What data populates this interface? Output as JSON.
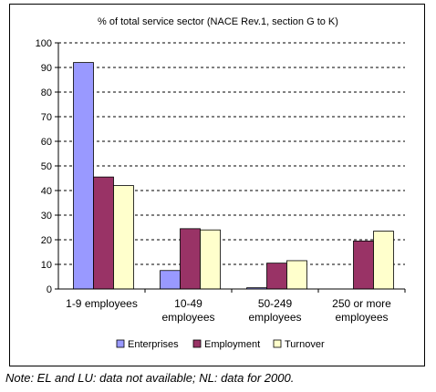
{
  "chart_data": {
    "type": "bar",
    "title": "% of total service sector (NACE Rev.1, section G to K)",
    "categories": [
      [
        "1-9 employees"
      ],
      [
        "10-49",
        "employees"
      ],
      [
        "50-249",
        "employees"
      ],
      [
        "250 or more",
        "employees"
      ]
    ],
    "series": [
      {
        "name": "Enterprises",
        "values": [
          92,
          7.5,
          0.5,
          0
        ],
        "color": "#9999ff"
      },
      {
        "name": "Employment",
        "values": [
          45.5,
          24.5,
          10.5,
          19.5
        ],
        "color": "#993366"
      },
      {
        "name": "Turnover",
        "values": [
          42,
          24,
          11.5,
          23.5
        ],
        "color": "#ffffcc"
      }
    ],
    "ylim": [
      0,
      100
    ],
    "yticks": [
      0,
      10,
      20,
      30,
      40,
      50,
      60,
      70,
      80,
      90,
      100
    ],
    "grid": true,
    "legend_position": "bottom"
  },
  "note": "Note: EL and LU: data not available; NL: data for 2000."
}
